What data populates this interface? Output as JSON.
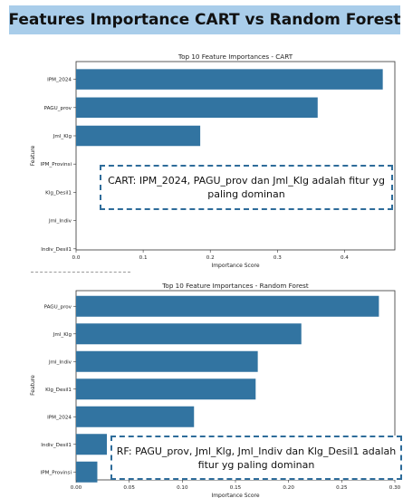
{
  "slide": {
    "title": "Features Importance CART vs Random Forest",
    "callout_cart": "CART: IPM_2024, PAGU_prov dan Jml_Klg adalah fitur yg paling dominan",
    "callout_rf": "RF: PAGU_prov,  Jml_Klg, Jml_Indiv dan  Klg_Desil1 adalah fitur yg paling dominan"
  },
  "colors": {
    "bar": "#3274a1",
    "title_bg": "#a9cdea",
    "callout_border": "#2e6c9a"
  },
  "chart_data": [
    {
      "type": "bar",
      "orientation": "horizontal",
      "title": "Top 10 Feature Importances - CART",
      "xlabel": "Importance Score",
      "ylabel": "Feature",
      "categories": [
        "IPM_2024",
        "PAGU_prov",
        "Jml_Klg",
        "IPM_Provinsi",
        "Klg_Desil1",
        "Jml_Indiv",
        "Indiv_Desil1"
      ],
      "values": [
        0.457,
        0.36,
        0.185,
        0,
        0,
        0,
        0
      ],
      "xlim": [
        0,
        0.475
      ],
      "xticks": [
        "0.0",
        "0.1",
        "0.2",
        "0.3",
        "0.4"
      ],
      "grid": false
    },
    {
      "type": "bar",
      "orientation": "horizontal",
      "title": "Top 10 Feature Importances - Random Forest",
      "xlabel": "Importance Score",
      "ylabel": "Feature",
      "categories": [
        "PAGU_prov",
        "Jml_Klg",
        "Jml_Indiv",
        "Klg_Desil1",
        "IPM_2024",
        "Indiv_Desil1",
        "IPM_Provinsi"
      ],
      "values": [
        0.285,
        0.212,
        0.171,
        0.169,
        0.111,
        0.029,
        0.02
      ],
      "xlim": [
        0,
        0.3
      ],
      "xticks": [
        "0.00",
        "0.05",
        "0.10",
        "0.15",
        "0.20",
        "0.25",
        "0.30"
      ],
      "grid": false
    }
  ]
}
